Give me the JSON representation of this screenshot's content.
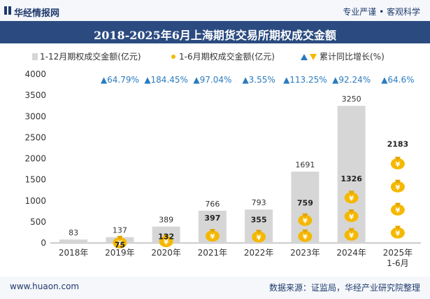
{
  "header": {
    "brand": "华经情报网",
    "tagline": "专业严谨 • 客观科学"
  },
  "footer": {
    "site": "www.huaon.com",
    "source": "数据来源：证监局，华经产业研究院整理"
  },
  "chart_data": {
    "type": "bar",
    "title": "2018-2025年6月上海期货交易所期权成交金额",
    "categories": [
      "2018年",
      "2019年",
      "2020年",
      "2021年",
      "2022年",
      "2023年",
      "2024年",
      "2025年\n1-6月"
    ],
    "series": [
      {
        "name": "1-12月期权成交金额(亿元)",
        "values": [
          83,
          137,
          389,
          766,
          793,
          1691,
          3250,
          null
        ],
        "color": "#d6d6d6"
      },
      {
        "name": "1-6月期权成交金额(亿元)",
        "values": [
          null,
          75,
          132,
          397,
          355,
          759,
          1326,
          2183
        ],
        "color": "#f5b800"
      },
      {
        "name": "累计同比增长(%)",
        "labels": [
          "",
          "▲64.79%",
          "▲184.45%",
          "▲97.04%",
          "▲3.55%",
          "▲113.25%",
          "▲92.24%",
          "▲64.6%"
        ],
        "color": "#2a7bbf"
      }
    ],
    "ylim": [
      0,
      4000
    ],
    "yticks": [
      0,
      500,
      1000,
      1500,
      2000,
      2500,
      3000,
      3500,
      4000
    ],
    "legend_position": "top",
    "grid": false
  }
}
